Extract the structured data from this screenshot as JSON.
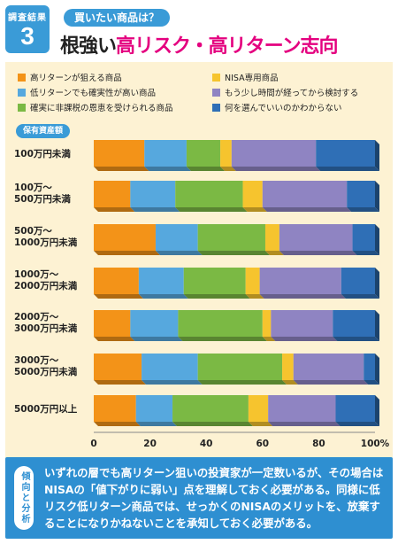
{
  "header": {
    "badge_label": "調査結果",
    "badge_number": "3",
    "subtitle": "買いたい商品は？",
    "title_plain": "根強い",
    "title_accent": "高リスク・高リターン志向"
  },
  "legend_title": "保有資産額",
  "colors": {
    "orange": "#f39318",
    "skyblue": "#56a8de",
    "green": "#7bb944",
    "yellow": "#f6c42e",
    "purple": "#8f84c2",
    "blue": "#2f6fb6",
    "panel": "#fdf2d3",
    "accent": "#e4007f"
  },
  "chart_data": {
    "type": "bar",
    "orientation": "horizontal",
    "stacked": true,
    "categories": [
      [
        "100万円未満"
      ],
      [
        "100万～",
        "500万円未満"
      ],
      [
        "500万～",
        "1000万円未満"
      ],
      [
        "1000万～",
        "2000万円未満"
      ],
      [
        "2000万～",
        "3000万円未満"
      ],
      [
        "3000万～",
        "5000万円未満"
      ],
      [
        "5000万円以上"
      ]
    ],
    "series": [
      {
        "name": "高リターンが狙える商品",
        "color": "#f39318",
        "values": [
          18,
          13,
          22,
          16,
          13,
          17,
          15
        ]
      },
      {
        "name": "低リターンでも確実性が高い商品",
        "color": "#56a8de",
        "values": [
          15,
          16,
          15,
          16,
          17,
          20,
          13
        ]
      },
      {
        "name": "確実に非課税の恩恵を受けられる商品",
        "color": "#7bb944",
        "values": [
          12,
          24,
          24,
          22,
          30,
          30,
          27
        ]
      },
      {
        "name": "NISA専用商品",
        "color": "#f6c42e",
        "values": [
          4,
          7,
          5,
          5,
          3,
          4,
          7
        ]
      },
      {
        "name": "もう少し時間が経ってから検討する",
        "color": "#8f84c2",
        "values": [
          30,
          30,
          26,
          29,
          22,
          25,
          24
        ]
      },
      {
        "name": "何を選んでいいのかわからない",
        "color": "#2f6fb6",
        "values": [
          21,
          10,
          8,
          12,
          15,
          4,
          14
        ]
      }
    ],
    "legend_order": [
      0,
      3,
      1,
      4,
      2,
      5
    ],
    "xlim": [
      0,
      100
    ],
    "xticks": [
      "0",
      "20",
      "40",
      "60",
      "80",
      "100%"
    ],
    "grid": false,
    "legend_position": "top"
  },
  "analysis": {
    "tag": "傾向と分析",
    "text": "いずれの層でも高リターン狙いの投資家が一定数いるが、その場合はNISAの「値下がりに弱い」点を理解しておく必要がある。同様に低リスク低リターン商品では、せっかくのNISAのメリットを、放棄することになりかねないことを承知しておく必要がある。"
  }
}
